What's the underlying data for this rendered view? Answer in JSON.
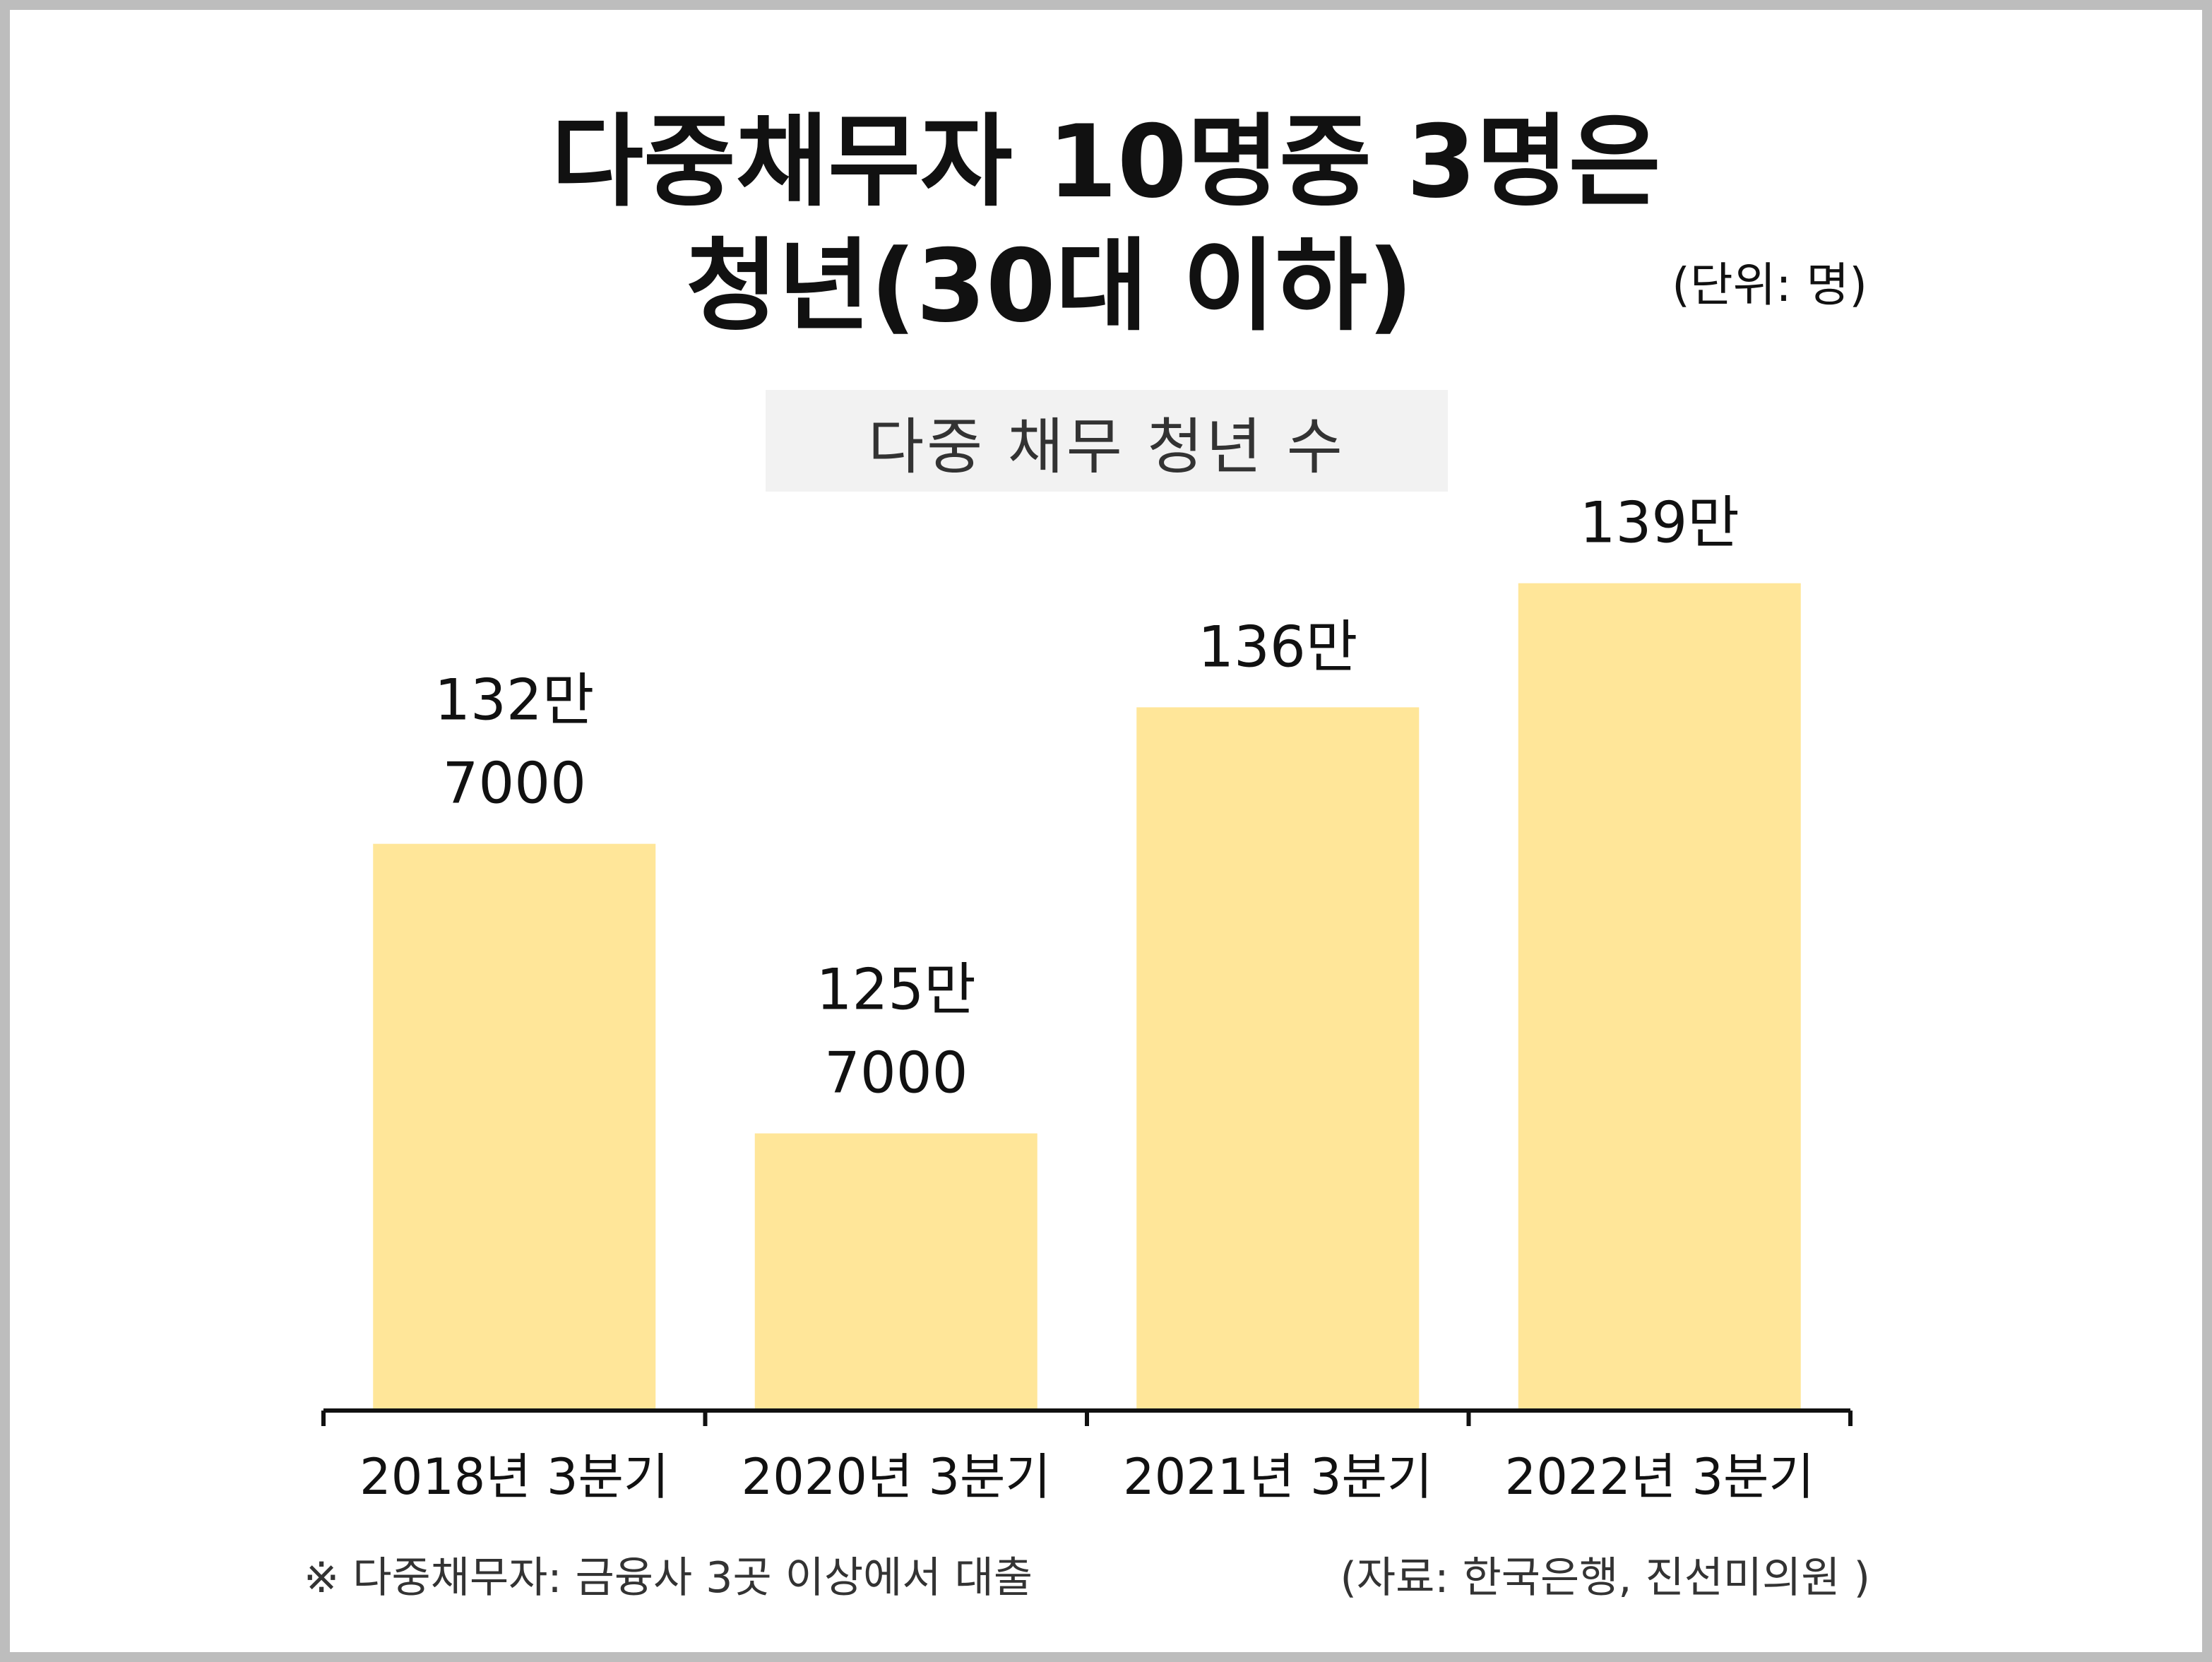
{
  "title_line1": "다중채무자 10명중 3명은",
  "title_line2": "청년(30대 이하)",
  "unit_label": "(단위: 명)",
  "subtitle": "다중 채무 청년 수",
  "footnote": "※ 다중채무자: 금융사 3곳 이상에서 대출",
  "source": "(자료: 한국은행, 진선미의원 )",
  "colors": {
    "bar": "#ffe699",
    "axis": "#111111"
  },
  "chart_data": {
    "type": "bar",
    "title": "다중 채무 청년 수",
    "categories": [
      "2018년 3분기",
      "2020년 3분기",
      "2021년 3분기",
      "2022년 3분기"
    ],
    "values": [
      1327000,
      1257000,
      1360000,
      1390000
    ],
    "data_labels": [
      [
        "132만",
        "7000"
      ],
      [
        "125만",
        "7000"
      ],
      [
        "136만"
      ],
      [
        "139만"
      ]
    ],
    "ylim": [
      1190000,
      1420000
    ],
    "grid": false,
    "legend": "none"
  }
}
